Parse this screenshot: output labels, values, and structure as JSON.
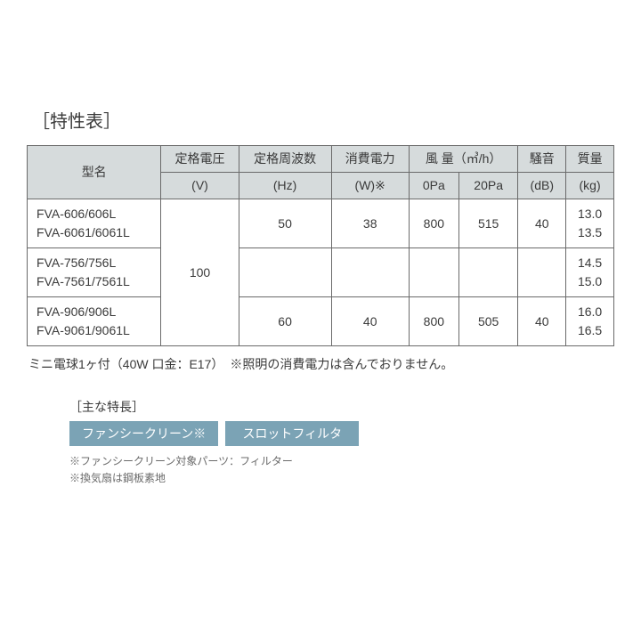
{
  "title": "［特性表］",
  "table": {
    "headers": {
      "model": "型名",
      "voltage_l1": "定格電圧",
      "voltage_l2": "(V)",
      "freq_l1": "定格周波数",
      "freq_l2": "(Hz)",
      "power_l1": "消費電力",
      "power_l2": "(W)※",
      "airflow_l1": "風 量（㎥/h）",
      "airflow_0": "0Pa",
      "airflow_20": "20Pa",
      "noise_l1": "騒音",
      "noise_l2": "(dB)",
      "mass_l1": "質量",
      "mass_l2": "(kg)"
    },
    "voltage_value": "100",
    "rows": [
      {
        "model_a": "FVA-606/606L",
        "model_b": "FVA-6061/6061L",
        "freq": "50",
        "power": "38",
        "air0": "800",
        "air20": "515",
        "noise": "40",
        "mass_a": "13.0",
        "mass_b": "13.5"
      },
      {
        "model_a": "FVA-756/756L",
        "model_b": "FVA-7561/7561L",
        "freq": "",
        "power": "",
        "air0": "",
        "air20": "",
        "noise": "",
        "mass_a": "14.5",
        "mass_b": "15.0"
      },
      {
        "model_a": "FVA-906/906L",
        "model_b": "FVA-9061/9061L",
        "freq": "60",
        "power": "40",
        "air0": "800",
        "air20": "505",
        "noise": "40",
        "mass_a": "16.0",
        "mass_b": "16.5"
      }
    ]
  },
  "note_text": "ミニ電球1ヶ付（40W 口金：E17）　※照明の消費電力は含んでおりません。",
  "features_title": "［主な特長］",
  "features": {
    "tag1": "ファンシークリーン※",
    "tag2": "スロットフィルタ"
  },
  "subnotes": {
    "line1": "※ファンシークリーン対象パーツ：フィルター",
    "line2": "※換気扇は鋼板素地"
  },
  "style": {
    "header_bg": "#d6dbdc",
    "border_color": "#6a6a6a",
    "tag_bg": "#7ba3b5",
    "tag_fg": "#ffffff",
    "text_color": "#3a3a3a",
    "subnote_color": "#6a6a6a"
  }
}
